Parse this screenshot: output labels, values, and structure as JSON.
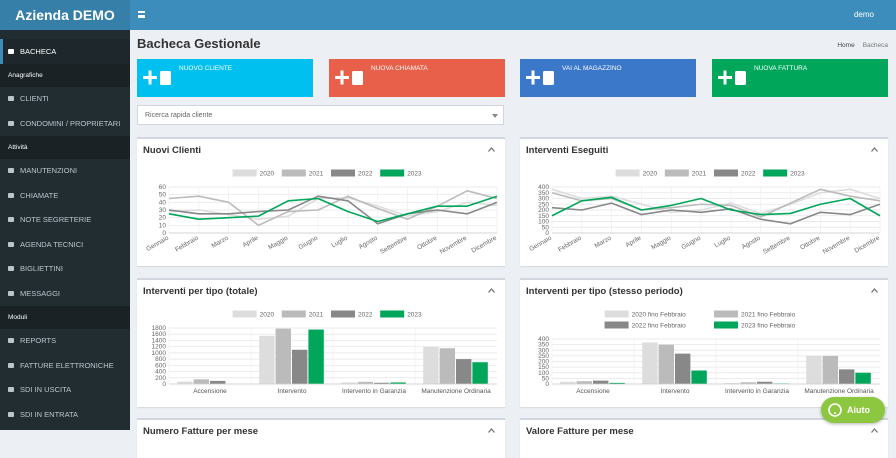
{
  "header": {
    "brand": "Azienda DEMO",
    "user": "demo"
  },
  "sidebar": {
    "items": [
      {
        "label": "BACHECA",
        "kind": "item"
      },
      {
        "label": "Anagrafiche",
        "kind": "section"
      },
      {
        "label": "CLIENTI",
        "kind": "item"
      },
      {
        "label": "CONDOMINI / PROPRIETARI",
        "kind": "item"
      },
      {
        "label": "Attività",
        "kind": "section"
      },
      {
        "label": "MANUTENZIONI",
        "kind": "item"
      },
      {
        "label": "CHIAMATE",
        "kind": "item"
      },
      {
        "label": "NOTE SEGRETERIE",
        "kind": "item"
      },
      {
        "label": "AGENDA TECNICI",
        "kind": "item"
      },
      {
        "label": "BIGLIETTINI",
        "kind": "item"
      },
      {
        "label": "MESSAGGI",
        "kind": "item"
      },
      {
        "label": "Moduli",
        "kind": "section"
      },
      {
        "label": "REPORTS",
        "kind": "item"
      },
      {
        "label": "FATTURE ELETTRONICHE",
        "kind": "item"
      },
      {
        "label": "SDI IN USCITA",
        "kind": "item"
      },
      {
        "label": "SDI IN ENTRATA",
        "kind": "item"
      }
    ]
  },
  "page": {
    "title": "Bacheca Gestionale",
    "breadcrumb": [
      "Home",
      "Bacheca"
    ],
    "buttons": [
      {
        "label": "NUOVO CLIENTE",
        "color": "#00c0ef"
      },
      {
        "label": "NUOVA CHIAMATA",
        "color": "#e8604a"
      },
      {
        "label": "VAI AL MAGAZZINO",
        "color": "#3b78c9"
      },
      {
        "label": "NUOVA FATTURA",
        "color": "#00a65a"
      }
    ],
    "search_placeholder": "Ricerca rapida cliente",
    "more_panels": [
      "Numero Fatture per mese",
      "Valore Fatture per mese"
    ],
    "help": "Aiuto"
  },
  "chart_data": [
    {
      "type": "line",
      "title": "Nuovi Clienti",
      "categories": [
        "Gennaio",
        "Febbraio",
        "Marzo",
        "Aprile",
        "Maggio",
        "Giugno",
        "Luglio",
        "Agosto",
        "Settembre",
        "Ottobre",
        "Novembre",
        "Dicembre"
      ],
      "series": [
        {
          "name": "2020",
          "color": "#dddddd",
          "values": [
            28,
            30,
            24,
            18,
            22,
            45,
            46,
            35,
            22,
            28,
            40,
            36
          ]
        },
        {
          "name": "2021",
          "color": "#bbbbbb",
          "values": [
            45,
            48,
            40,
            10,
            28,
            30,
            48,
            32,
            18,
            35,
            55,
            45
          ]
        },
        {
          "name": "2022",
          "color": "#888888",
          "values": [
            30,
            25,
            25,
            28,
            30,
            48,
            42,
            12,
            25,
            30,
            25,
            40
          ]
        },
        {
          "name": "2023",
          "color": "#00a65a",
          "values": [
            25,
            18,
            20,
            22,
            42,
            45,
            28,
            15,
            25,
            35,
            35,
            48
          ]
        }
      ],
      "ylim": [
        0,
        60
      ],
      "yticks": [
        0,
        10,
        20,
        30,
        40,
        50,
        60
      ]
    },
    {
      "type": "line",
      "title": "Interventi Eseguiti",
      "categories": [
        "Gennaio",
        "Febbraio",
        "Marzo",
        "Aprile",
        "Maggio",
        "Giugno",
        "Luglio",
        "Agosto",
        "Settembre",
        "Ottobre",
        "Novembre",
        "Dicembre"
      ],
      "series": [
        {
          "name": "2020",
          "color": "#dddddd",
          "values": [
            380,
            300,
            320,
            250,
            180,
            200,
            260,
            170,
            250,
            350,
            380,
            300
          ]
        },
        {
          "name": "2021",
          "color": "#bbbbbb",
          "values": [
            350,
            280,
            300,
            200,
            220,
            250,
            240,
            140,
            260,
            380,
            320,
            280
          ]
        },
        {
          "name": "2022",
          "color": "#888888",
          "values": [
            220,
            200,
            260,
            160,
            200,
            180,
            210,
            120,
            80,
            180,
            160,
            250
          ]
        },
        {
          "name": "2023",
          "color": "#00a65a",
          "values": [
            150,
            280,
            310,
            200,
            240,
            300,
            200,
            160,
            170,
            250,
            300,
            150
          ]
        }
      ],
      "ylim": [
        0,
        400
      ],
      "yticks": [
        0,
        50,
        100,
        150,
        200,
        250,
        300,
        350,
        400
      ]
    },
    {
      "type": "bar",
      "title": "Interventi per tipo (totale)",
      "categories": [
        "Accensione",
        "Intervento",
        "Intervento in Garanzia",
        "Manutenzione Ordinaria"
      ],
      "series": [
        {
          "name": "2020",
          "color": "#dddddd",
          "values": [
            80,
            1550,
            50,
            1200
          ]
        },
        {
          "name": "2021",
          "color": "#bbbbbb",
          "values": [
            150,
            1780,
            70,
            1150
          ]
        },
        {
          "name": "2022",
          "color": "#888888",
          "values": [
            100,
            1100,
            40,
            800
          ]
        },
        {
          "name": "2023",
          "color": "#00a65a",
          "values": [
            0,
            1750,
            50,
            700
          ]
        }
      ],
      "ylim": [
        0,
        1800
      ],
      "yticks": [
        0,
        200,
        400,
        600,
        800,
        1000,
        1200,
        1400,
        1600,
        1800
      ]
    },
    {
      "type": "bar",
      "title": "Interventi per tipo (stesso periodo)",
      "categories": [
        "Accensione",
        "Intervento",
        "Intervento in Garanzia",
        "Manutenzione Ordinaria"
      ],
      "series": [
        {
          "name": "2020 fino Febbraio",
          "color": "#dddddd",
          "values": [
            20,
            370,
            10,
            250
          ]
        },
        {
          "name": "2021 fino Febbraio",
          "color": "#bbbbbb",
          "values": [
            25,
            350,
            15,
            250
          ]
        },
        {
          "name": "2022 fino Febbraio",
          "color": "#888888",
          "values": [
            30,
            270,
            20,
            130
          ]
        },
        {
          "name": "2023 fino Febbraio",
          "color": "#00a65a",
          "values": [
            10,
            120,
            5,
            100
          ]
        }
      ],
      "ylim": [
        0,
        400
      ],
      "yticks": [
        0,
        50,
        100,
        150,
        200,
        250,
        300,
        350,
        400
      ]
    }
  ]
}
